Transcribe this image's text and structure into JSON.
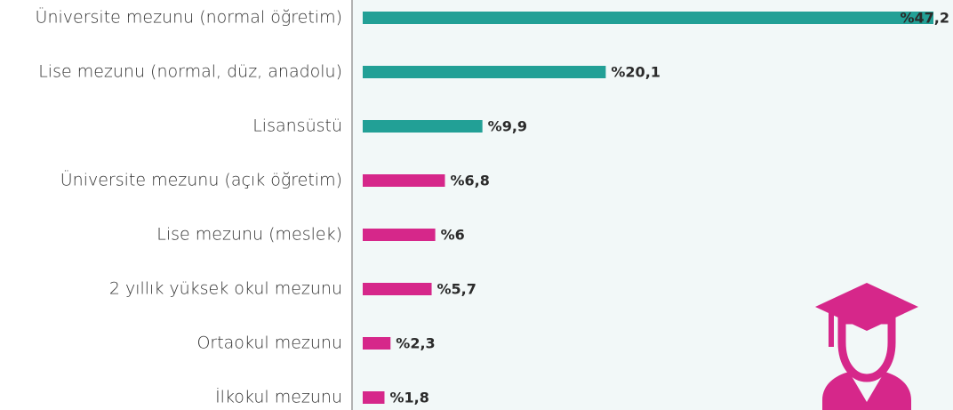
{
  "chart_data": {
    "type": "bar",
    "orientation": "horizontal",
    "categories": [
      "Üniversite mezunu (normal öğretim)",
      "Lise mezunu (normal, düz, anadolu)",
      "Lisansüstü",
      "Üniversite mezunu (açık öğretim)",
      "Lise mezunu (meslek)",
      "2 yıllık yüksek okul mezunu",
      "Ortaokul mezunu",
      "İlkokul mezunu"
    ],
    "values": [
      47.2,
      20.1,
      9.9,
      6.8,
      6,
      5.7,
      2.3,
      1.8
    ],
    "value_labels": [
      "%47,2",
      "%20,1",
      "%9,9",
      "%6,8",
      "%6",
      "%5,7",
      "%2,3",
      "%1,8"
    ],
    "colors": [
      "#22a096",
      "#22a096",
      "#22a096",
      "#d6278a",
      "#d6278a",
      "#d6278a",
      "#d6278a",
      "#d6278a"
    ]
  }
}
